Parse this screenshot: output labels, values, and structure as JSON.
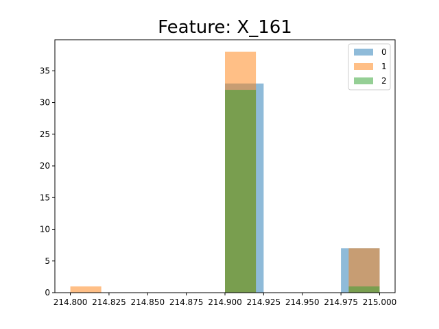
{
  "chart_data": {
    "type": "bar",
    "title": "Feature: X_161",
    "xlabel": "",
    "ylabel": "",
    "xlim": [
      214.79,
      215.01
    ],
    "ylim": [
      0,
      39.9
    ],
    "grid": false,
    "legend_position": "top-right",
    "x_ticks": [
      214.8,
      214.825,
      214.85,
      214.875,
      214.9,
      214.925,
      214.95,
      214.975,
      215.0
    ],
    "x_tick_labels": [
      "214.800",
      "214.825",
      "214.850",
      "214.875",
      "214.900",
      "214.925",
      "214.950",
      "214.975",
      "215.000"
    ],
    "y_ticks": [
      0,
      5,
      10,
      15,
      20,
      25,
      30,
      35
    ],
    "y_tick_labels": [
      "0",
      "5",
      "10",
      "15",
      "20",
      "25",
      "30",
      "35"
    ],
    "series": [
      {
        "name": "0",
        "color": "#1f77b4",
        "opacity": 0.5,
        "bins": [
          {
            "x0": 214.9,
            "x1": 214.925,
            "count": 33
          },
          {
            "x0": 214.975,
            "x1": 215.0,
            "count": 7
          }
        ]
      },
      {
        "name": "1",
        "color": "#ff7f0e",
        "opacity": 0.5,
        "bins": [
          {
            "x0": 214.8,
            "x1": 214.82,
            "count": 1
          },
          {
            "x0": 214.9,
            "x1": 214.92,
            "count": 38
          },
          {
            "x0": 214.98,
            "x1": 215.0,
            "count": 7
          }
        ]
      },
      {
        "name": "2",
        "color": "#2ca02c",
        "opacity": 0.5,
        "bins": [
          {
            "x0": 214.9,
            "x1": 214.92,
            "count": 32
          },
          {
            "x0": 214.98,
            "x1": 215.0,
            "count": 1
          }
        ]
      }
    ]
  }
}
